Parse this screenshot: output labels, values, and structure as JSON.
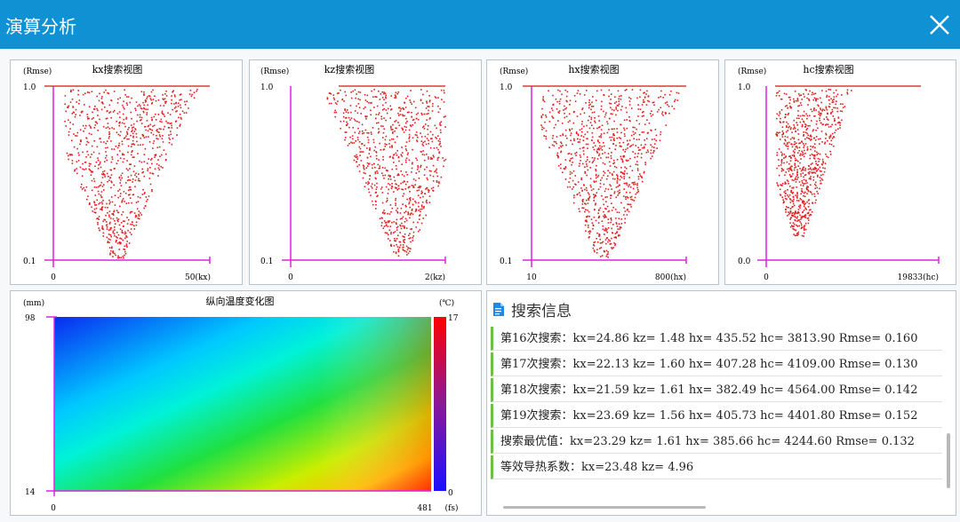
{
  "window": {
    "title": "演算分析"
  },
  "scatter_plots": [
    {
      "title": "kx搜索视图",
      "ylabel": "(Rmse)",
      "ytop": "1.0",
      "ybottom": "0.1",
      "xleft": "0",
      "xright": "50(kx)"
    },
    {
      "title": "kz搜索视图",
      "ylabel": "(Rmse)",
      "ytop": "1.0",
      "ybottom": "0.1",
      "xleft": "0",
      "xright": "2(kz)"
    },
    {
      "title": "hx搜索视图",
      "ylabel": "(Rmse)",
      "ytop": "1.0",
      "ybottom": "0.1",
      "xleft": "10",
      "xright": "800(hx)"
    },
    {
      "title": "hc搜索视图",
      "ylabel": "(Rmse)",
      "ytop": "1.0",
      "ybottom": "0.0",
      "xleft": "0",
      "xright": "19833(hc)"
    }
  ],
  "heatmap": {
    "title": "纵向温度变化图",
    "yunit": "(mm)",
    "ytop": "98",
    "ybottom": "14",
    "xleft": "0",
    "xright": "481",
    "xunit": "(fs)",
    "cunit": "(℃)",
    "ctop": "17",
    "cbottom": "0"
  },
  "info": {
    "title": "搜索信息",
    "items": [
      "第16次搜索：kx=24.86 kz= 1.48 hx= 435.52 hc=  3813.90 Rmse= 0.160",
      "第17次搜索：kx=22.13 kz= 1.60 hx= 407.28 hc=  4109.00 Rmse= 0.130",
      "第18次搜索：kx=21.59 kz= 1.61 hx= 382.49 hc=  4564.00 Rmse= 0.142",
      "第19次搜索：kx=23.69 kz= 1.56 hx= 405.73 hc=  4401.80 Rmse= 0.152",
      "搜索最优值：kx=23.29 kz= 1.61 hx= 385.66 hc=  4244.60 Rmse= 0.132",
      "等效导热系数：kx=23.48 kz= 4.96"
    ]
  },
  "colors": {
    "titlebar": "#0f91d4",
    "axis": "#e020e0",
    "points": "#e02020",
    "accent_bar": "#6cc04a"
  },
  "icons": {
    "close": "close-icon",
    "info": "document-icon"
  }
}
